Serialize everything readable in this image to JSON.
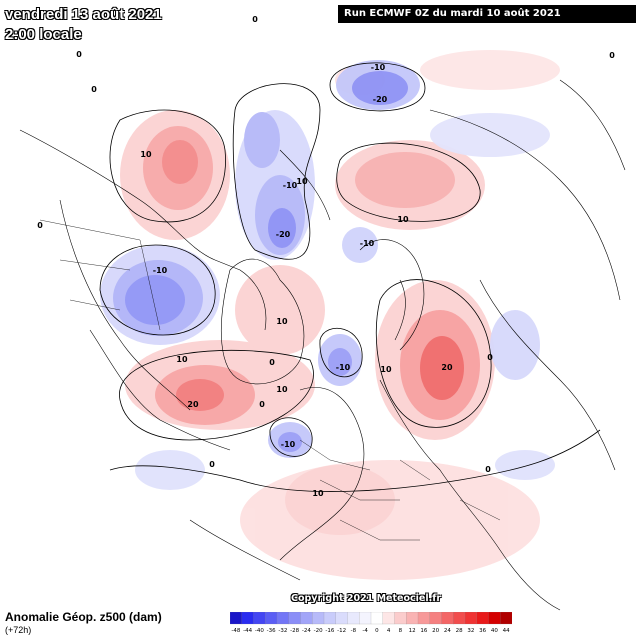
{
  "header": {
    "date": "vendredi 13 août 2021",
    "time": "2:00 locale",
    "run": "Run ECMWF 0Z du mardi 10 août 2021"
  },
  "footer": {
    "copyright": "Copyright 2021 Meteociel.fr",
    "field_name": "Anomalie Géop. z500 (dam)",
    "lead_time": "(+72h)"
  },
  "legend": {
    "ticks": [
      "-48",
      "-44",
      "-40",
      "-36",
      "-32",
      "-28",
      "-24",
      "-20",
      "-16",
      "-12",
      "-8",
      "-4",
      "0",
      "4",
      "8",
      "12",
      "16",
      "20",
      "24",
      "28",
      "32",
      "36",
      "40",
      "44"
    ],
    "colors": [
      "#1a16c8",
      "#2a2cf0",
      "#4446f2",
      "#5b5ef4",
      "#7376f6",
      "#8b8ef7",
      "#a2a5f8",
      "#b7baf9",
      "#c9ccfb",
      "#dadcfc",
      "#e8e9fd",
      "#f4f4fe",
      "#ffffff",
      "#fde6e6",
      "#fbcccc",
      "#f9b3b3",
      "#f79999",
      "#f58080",
      "#f36666",
      "#f14d4d",
      "#ef3333",
      "#e81a1a",
      "#d40000",
      "#b00000"
    ]
  },
  "contour_labels": [
    {
      "text": "-10",
      "color": "#000000"
    },
    {
      "text": "-20",
      "color": "#000000"
    },
    {
      "text": "10",
      "color": "#000000"
    },
    {
      "text": "-10",
      "color": "#000000"
    },
    {
      "text": "-20",
      "color": "#000000"
    },
    {
      "text": "10",
      "color": "#000000"
    },
    {
      "text": "-10",
      "color": "#000000"
    },
    {
      "text": "10",
      "color": "#000000"
    },
    {
      "text": "-10",
      "color": "#000000"
    },
    {
      "text": "10",
      "color": "#000000"
    },
    {
      "text": "20",
      "color": "#000000"
    },
    {
      "text": "10",
      "color": "#000000"
    },
    {
      "text": "-10",
      "color": "#000000"
    },
    {
      "text": "20",
      "color": "#000000"
    },
    {
      "text": "10",
      "color": "#000000"
    },
    {
      "text": "-10",
      "color": "#000000"
    },
    {
      "text": "10",
      "color": "#000000"
    },
    {
      "text": "10",
      "color": "#000000"
    },
    {
      "text": "0",
      "color": "#000000"
    },
    {
      "text": "0",
      "color": "#000000"
    },
    {
      "text": "0",
      "color": "#000000"
    },
    {
      "text": "0",
      "color": "#000000"
    },
    {
      "text": "0",
      "color": "#000000"
    },
    {
      "text": "0",
      "color": "#000000"
    },
    {
      "text": "0",
      "color": "#000000"
    },
    {
      "text": "0",
      "color": "#000000"
    },
    {
      "text": "0",
      "color": "#000000"
    },
    {
      "text": "0",
      "color": "#000000"
    }
  ]
}
